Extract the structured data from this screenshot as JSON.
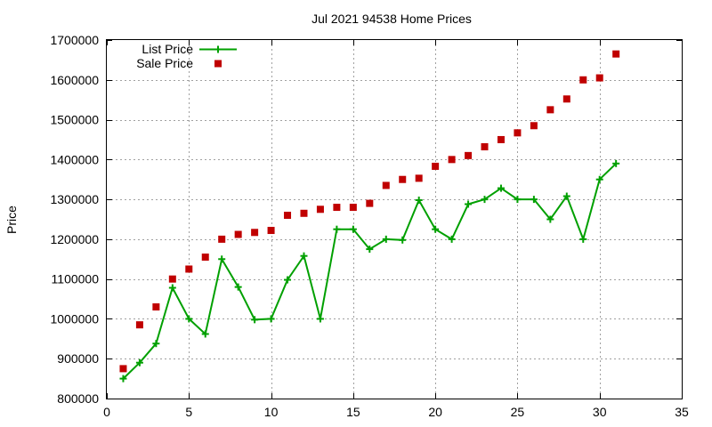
{
  "chart_data": {
    "type": "line",
    "title": "Jul 2021 94538 Home Prices",
    "xlabel": "",
    "ylabel": "Price",
    "xlim": [
      0,
      35
    ],
    "ylim": [
      800000,
      1700000
    ],
    "xticks": [
      0,
      5,
      10,
      15,
      20,
      25,
      30,
      35
    ],
    "yticks": [
      800000,
      900000,
      1000000,
      1100000,
      1200000,
      1300000,
      1400000,
      1500000,
      1600000,
      1700000
    ],
    "grid": true,
    "legend_position": "top-left",
    "series": [
      {
        "name": "List Price",
        "style": "line-with-plus-markers",
        "color": "#00a000",
        "x": [
          1,
          2,
          3,
          4,
          5,
          6,
          7,
          8,
          9,
          10,
          11,
          12,
          13,
          14,
          15,
          16,
          17,
          18,
          19,
          20,
          21,
          22,
          23,
          24,
          25,
          26,
          27,
          28,
          29,
          30,
          31
        ],
        "y": [
          850000,
          890000,
          938000,
          1078000,
          1000000,
          962000,
          1150000,
          1080000,
          998000,
          1000000,
          1098000,
          1158000,
          1000000,
          1225000,
          1225000,
          1175000,
          1200000,
          1198000,
          1298000,
          1225000,
          1200000,
          1288000,
          1300000,
          1328000,
          1300000,
          1300000,
          1250000,
          1308000,
          1200000,
          1350000,
          1390000
        ]
      },
      {
        "name": "Sale Price",
        "style": "square-markers",
        "color": "#c00000",
        "x": [
          1,
          2,
          3,
          4,
          5,
          6,
          7,
          8,
          9,
          10,
          11,
          12,
          13,
          14,
          15,
          16,
          17,
          18,
          19,
          20,
          21,
          22,
          23,
          24,
          25,
          26,
          27,
          28,
          29,
          30,
          31
        ],
        "y": [
          875000,
          985000,
          1030000,
          1100000,
          1125000,
          1155000,
          1200000,
          1212000,
          1217000,
          1222000,
          1260000,
          1265000,
          1275000,
          1280000,
          1280000,
          1290000,
          1335000,
          1350000,
          1353000,
          1383000,
          1400000,
          1410000,
          1432000,
          1450000,
          1467000,
          1485000,
          1525000,
          1552000,
          1600000,
          1605000,
          1665000
        ]
      }
    ]
  }
}
